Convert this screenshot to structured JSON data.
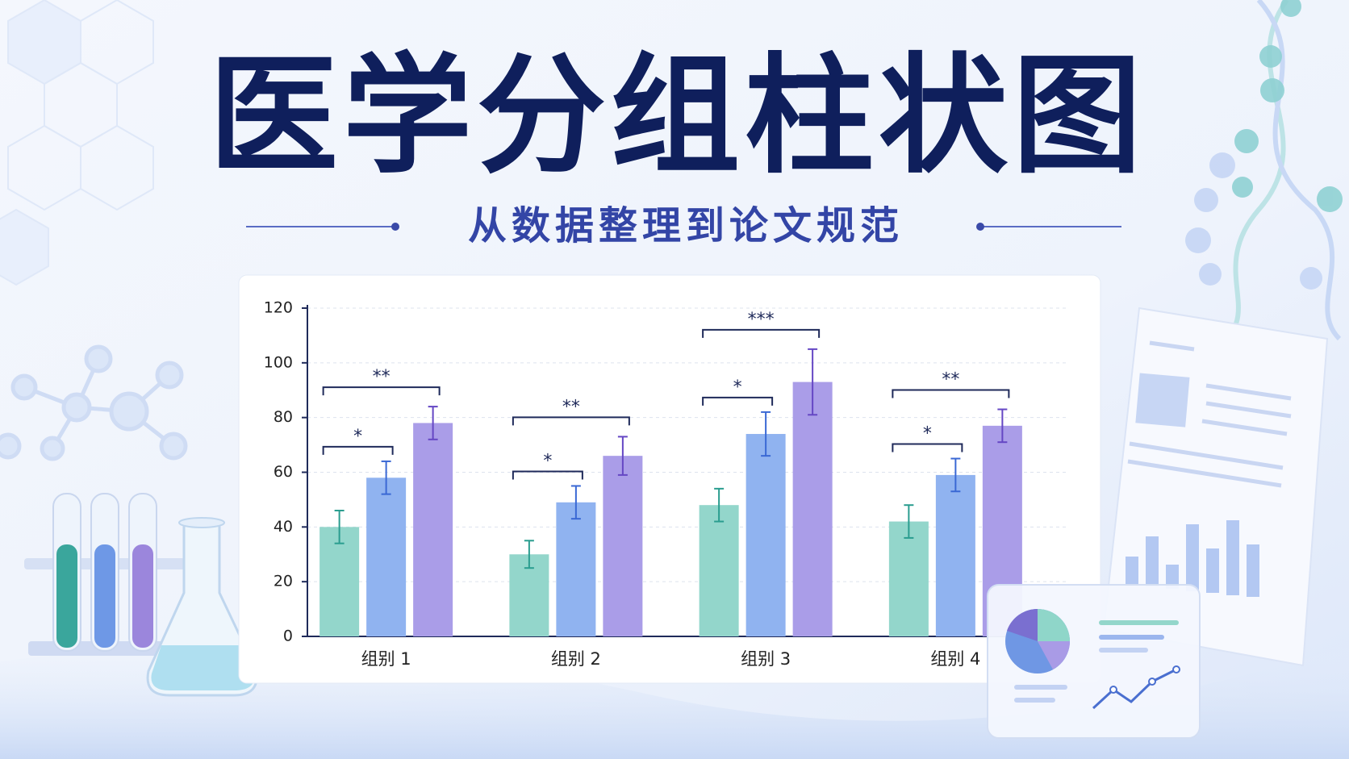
{
  "title": "医学分组柱状图",
  "subtitle": "从数据整理到论文规范",
  "chart_data": {
    "type": "bar",
    "categories": [
      "组别 1",
      "组别 2",
      "组别 3",
      "组别 4"
    ],
    "series": [
      {
        "color": "#93d6cb",
        "error_color": "#2a9d8f",
        "values": [
          40,
          30,
          48,
          42
        ],
        "errors": [
          6,
          5,
          6,
          6
        ]
      },
      {
        "color": "#90b3f0",
        "error_color": "#3a68d4",
        "values": [
          58,
          49,
          74,
          59
        ],
        "errors": [
          6,
          6,
          8,
          6
        ]
      },
      {
        "color": "#aa9de8",
        "error_color": "#6547c4",
        "values": [
          78,
          66,
          93,
          77
        ],
        "errors": [
          6,
          7,
          12,
          6
        ]
      }
    ],
    "significance": [
      [
        "*",
        "**"
      ],
      [
        "*",
        "**"
      ],
      [
        "*",
        "***"
      ],
      [
        "*",
        "**"
      ]
    ],
    "ylim": [
      0,
      120
    ],
    "yticks": [
      0,
      20,
      40,
      60,
      80,
      100,
      120
    ],
    "grid": true
  }
}
